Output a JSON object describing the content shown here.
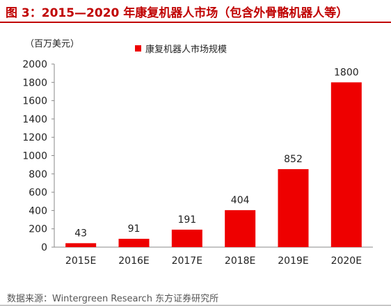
{
  "header": {
    "title": "图 3：2015—2020 年康复机器人市场（包含外骨骼机器人等）"
  },
  "source": "数据来源：Wintergreen Research 东方证券研究所",
  "chart_data": {
    "type": "bar",
    "title": "",
    "unit_label": "（百万美元）",
    "categories": [
      "2015E",
      "2016E",
      "2017E",
      "2018E",
      "2019E",
      "2020E"
    ],
    "series": [
      {
        "name": "康复机器人市场规模",
        "values": [
          43,
          91,
          191,
          404,
          852,
          1800
        ],
        "color": "#ee0000"
      }
    ],
    "data_labels": [
      "43",
      "91",
      "191",
      "404",
      "852",
      "1800"
    ],
    "ylim": [
      0,
      2000
    ],
    "yticks": [
      0,
      200,
      400,
      600,
      800,
      1000,
      1200,
      1400,
      1600,
      1800,
      2000
    ],
    "xlabel": "",
    "ylabel": "",
    "grid": false,
    "legend_position": "top"
  }
}
